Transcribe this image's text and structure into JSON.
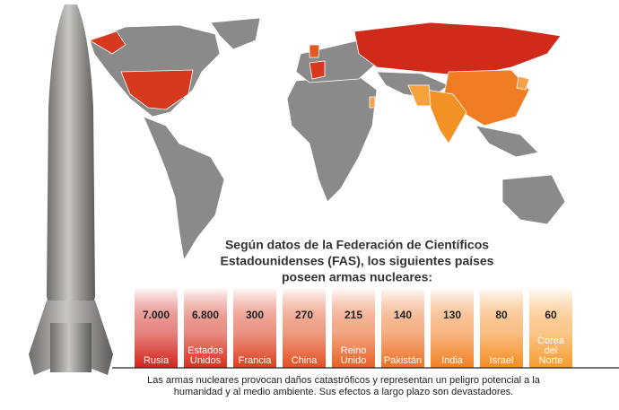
{
  "intro": [
    "Según datos de la Federación de Científicos",
    "Estadounidenses (FAS), los siguientes países",
    "poseen armas nucleares:"
  ],
  "countries": [
    {
      "value": "7.000",
      "name": [
        "Rusia"
      ]
    },
    {
      "value": "6.800",
      "name": [
        "Estados",
        "Unidos"
      ]
    },
    {
      "value": "300",
      "name": [
        "Francia"
      ]
    },
    {
      "value": "270",
      "name": [
        "China"
      ]
    },
    {
      "value": "215",
      "name": [
        "Reino",
        "Unido"
      ]
    },
    {
      "value": "140",
      "name": [
        "Pakistán"
      ]
    },
    {
      "value": "130",
      "name": [
        "India"
      ]
    },
    {
      "value": "80",
      "name": [
        "Israel"
      ]
    },
    {
      "value": "60",
      "name": [
        "Corea",
        "del",
        "Norte"
      ]
    }
  ],
  "footer": [
    "Las armas nucleares provocan daños catastróficos y representan un peligro potencial a la",
    "humanidad y al medio ambiente. Sus efectos a largo plazo son devastadores."
  ]
}
